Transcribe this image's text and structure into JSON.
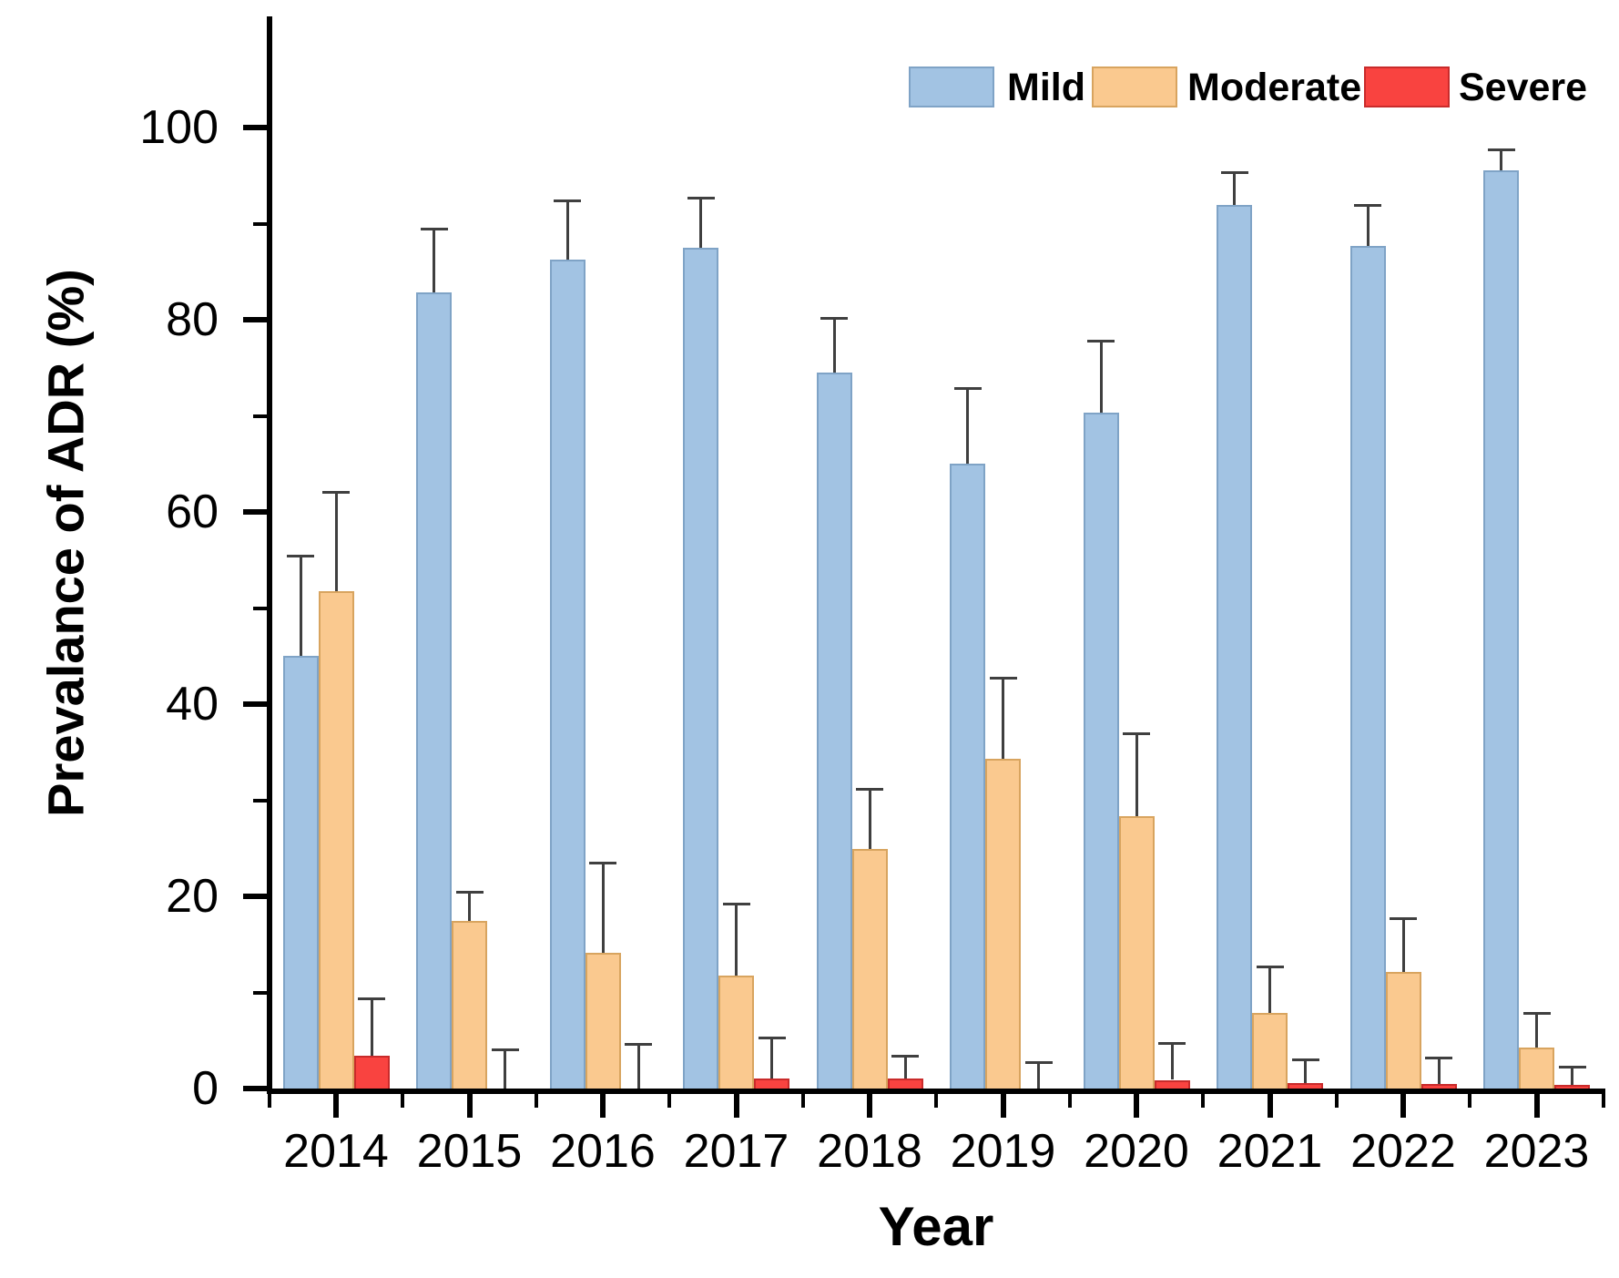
{
  "figure": {
    "background": "#ffffff",
    "text_color": "#000000"
  },
  "chart_data": {
    "type": "bar",
    "title": "",
    "xlabel": "Year",
    "ylabel": "Prevalance of ADR (%)",
    "categories": [
      "2014",
      "2015",
      "2016",
      "2017",
      "2018",
      "2019",
      "2020",
      "2021",
      "2022",
      "2023"
    ],
    "series": [
      {
        "name": "Mild",
        "color": "#a2c3e3",
        "border_color": "#7fa3c6",
        "values": [
          45.0,
          82.8,
          86.3,
          87.5,
          74.5,
          65.0,
          70.3,
          91.9,
          87.7,
          95.5
        ],
        "errors_plus": [
          10.4,
          6.6,
          6.1,
          5.2,
          5.6,
          7.8,
          7.5,
          3.4,
          4.2,
          2.2
        ]
      },
      {
        "name": "Moderate",
        "color": "#fac98f",
        "border_color": "#d8a45f",
        "values": [
          51.8,
          17.4,
          14.1,
          11.8,
          24.9,
          34.3,
          28.3,
          7.9,
          12.1,
          4.3
        ],
        "errors_plus": [
          10.2,
          3.0,
          9.4,
          7.4,
          6.2,
          8.4,
          8.6,
          4.8,
          5.6,
          3.5
        ]
      },
      {
        "name": "Severe",
        "color": "#f94340",
        "border_color": "#c92b2b",
        "values": [
          3.4,
          0,
          0,
          1.0,
          1.0,
          0,
          0.9,
          0.6,
          0.5,
          0.4
        ],
        "errors_plus": [
          5.9,
          4.0,
          4.6,
          4.3,
          2.4,
          2.7,
          3.8,
          2.4,
          2.7,
          1.8
        ]
      }
    ],
    "error_bars": "plus_only",
    "error_bar_color": "#3f3f3f",
    "axis_color": "#000000",
    "ylim": [
      0,
      110
    ],
    "y_ticks_major": [
      0,
      20,
      40,
      60,
      80,
      100
    ],
    "y_ticks_minor": [
      10,
      30,
      50,
      70,
      90
    ],
    "grid": false,
    "legend_position": "top-right"
  }
}
